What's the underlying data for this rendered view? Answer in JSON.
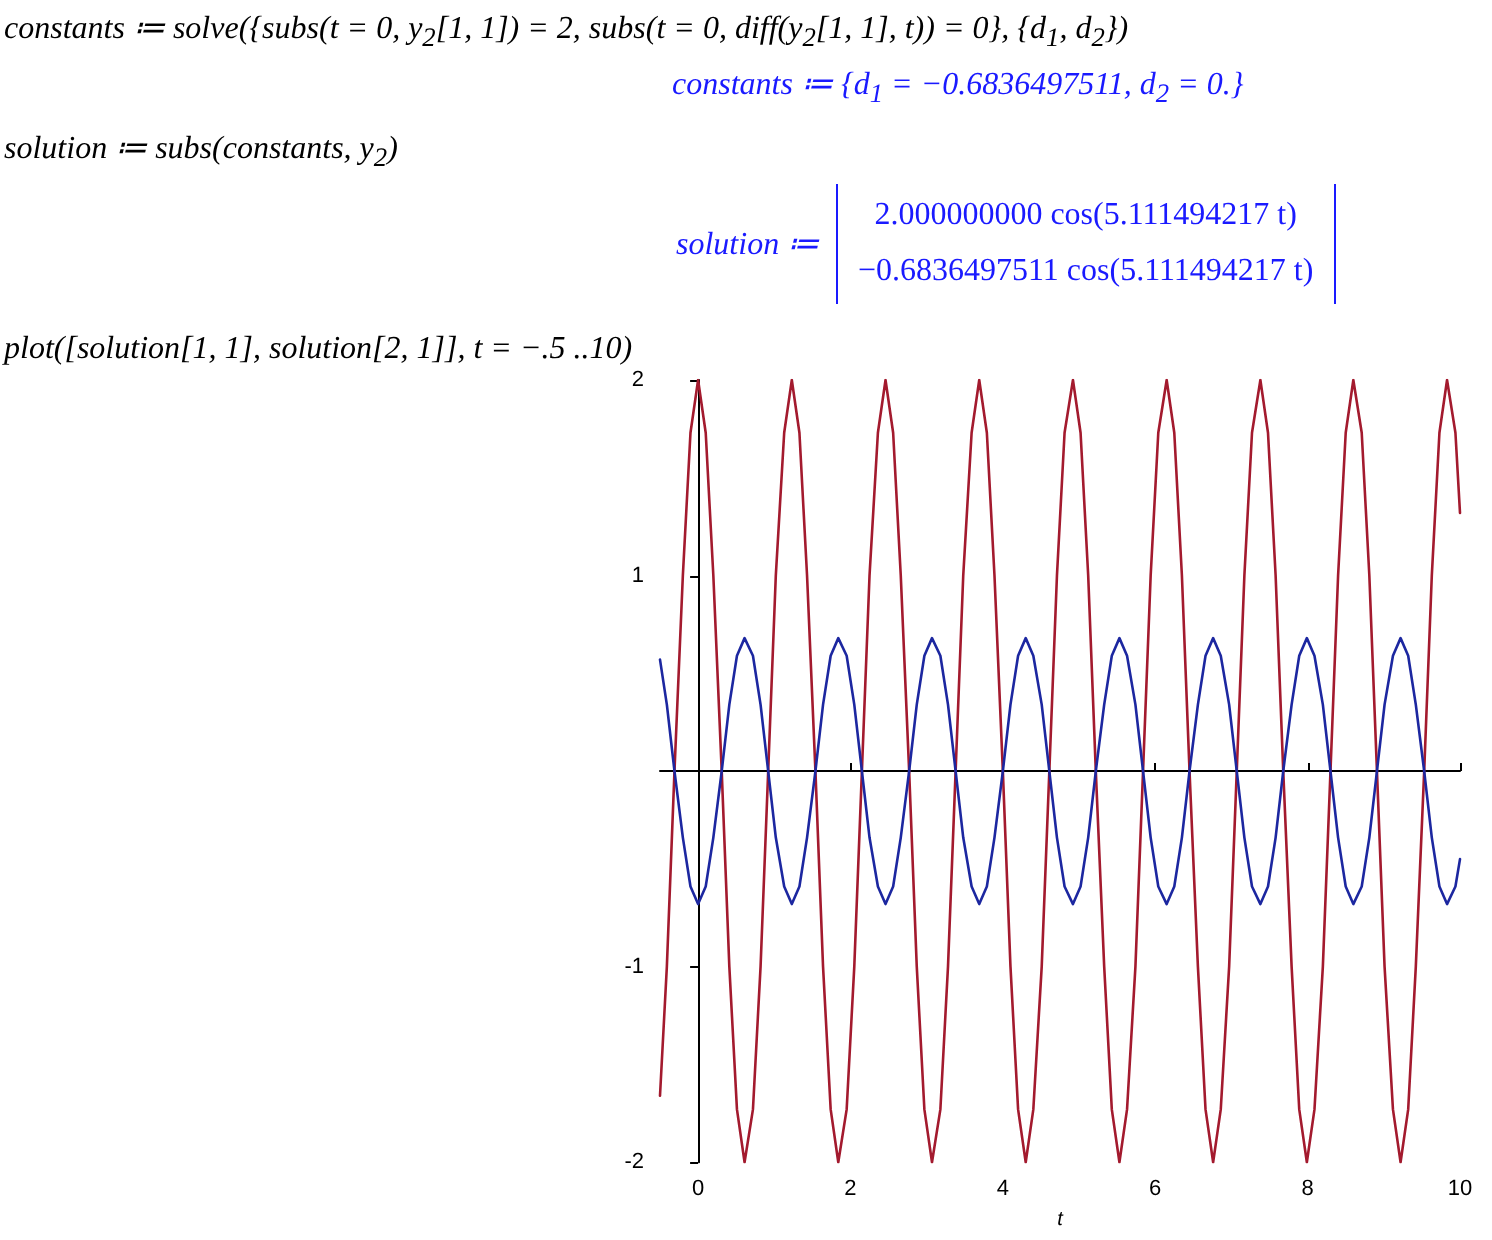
{
  "chart_data": {
    "type": "line",
    "annotations": [
      "constants ≔ solve({subs(t = 0, y$_{2}$[1, 1]) = 2, subs(t = 0, diff(y$_{2}$[1, 1], t)) = 0}, {d$_{1}$, d$_{2}$})",
      "constants ≔ {d$_{1}$ = −0.6836497511, d$_{2}$ = 0.}",
      "solution ≔ subs(constants, y$_{2}$)",
      "solution ≔",
      "2.000000000 cos(5.111494217 t)",
      "−0.6836497511 cos(5.111494217 t)",
      "plot([solution[1, 1], solution[2, 1]], t = −.5 ..10)"
    ],
    "xlabel": "t",
    "x": [
      -0.5,
      -0.41,
      -0.31,
      -0.2,
      -0.1,
      0,
      0.1,
      0.2,
      0.31,
      0.41,
      0.51,
      0.61,
      0.72,
      0.82,
      0.92,
      1.02,
      1.13,
      1.23,
      1.33,
      1.43,
      1.54,
      1.64,
      1.74,
      1.84,
      1.95,
      2.05,
      2.15,
      2.25,
      2.36,
      2.46,
      2.56,
      2.66,
      2.77,
      2.87,
      2.97,
      3.07,
      3.18,
      3.28,
      3.38,
      3.48,
      3.59,
      3.69,
      3.79,
      3.89,
      4,
      4.1,
      4.2,
      4.3,
      4.4,
      4.51,
      4.61,
      4.71,
      4.81,
      4.92,
      5.02,
      5.12,
      5.22,
      5.33,
      5.43,
      5.53,
      5.63,
      5.74,
      5.84,
      5.94,
      6.04,
      6.15,
      6.25,
      6.35,
      6.45,
      6.56,
      6.66,
      6.76,
      6.86,
      6.97,
      7.07,
      7.17,
      7.27,
      7.38,
      7.48,
      7.58,
      7.68,
      7.79,
      7.89,
      7.99,
      8.09,
      8.2,
      8.3,
      8.4,
      8.5,
      8.6,
      8.71,
      8.81,
      8.91,
      9.01,
      9.12,
      9.22,
      9.32,
      9.42,
      9.53,
      9.63,
      9.73,
      9.83,
      9.94,
      10
    ],
    "series": [
      {
        "color": "#a31a2e",
        "values": [
          -1.66,
          -1,
          0,
          1,
          1.73,
          2,
          1.73,
          1,
          0,
          -1,
          -1.73,
          -2,
          -1.73,
          -1,
          0,
          1,
          1.73,
          2,
          1.73,
          1,
          0,
          -1,
          -1.73,
          -2,
          -1.73,
          -1,
          0,
          1,
          1.73,
          2,
          1.73,
          1,
          0,
          -1,
          -1.73,
          -2,
          -1.73,
          -1,
          0,
          1,
          1.73,
          2,
          1.73,
          1,
          0,
          -1,
          -1.73,
          -2,
          -1.73,
          -1,
          0,
          1,
          1.73,
          2,
          1.73,
          1,
          0,
          -1,
          -1.73,
          -2,
          -1.73,
          -1,
          0,
          1,
          1.73,
          2,
          1.73,
          1,
          0,
          -1,
          -1.73,
          -2,
          -1.73,
          -1,
          0,
          1,
          1.73,
          2,
          1.73,
          1,
          0,
          -1,
          -1.73,
          -2,
          -1.73,
          -1,
          0,
          1,
          1.73,
          2,
          1.73,
          1,
          0,
          -1,
          -1.73,
          -2,
          -1.73,
          -1,
          0,
          1,
          1.73,
          2,
          1.73,
          1.32
        ]
      },
      {
        "color": "#1c27a0",
        "values": [
          0.57,
          0.34,
          0,
          -0.34,
          -0.59,
          -0.68,
          -0.59,
          -0.34,
          0,
          0.34,
          0.59,
          0.68,
          0.59,
          0.34,
          0,
          -0.34,
          -0.59,
          -0.68,
          -0.59,
          -0.34,
          0,
          0.34,
          0.59,
          0.68,
          0.59,
          0.34,
          0,
          -0.34,
          -0.59,
          -0.68,
          -0.59,
          -0.34,
          0,
          0.34,
          0.59,
          0.68,
          0.59,
          0.34,
          0,
          -0.34,
          -0.59,
          -0.68,
          -0.59,
          -0.34,
          0,
          0.34,
          0.59,
          0.68,
          0.59,
          0.34,
          0,
          -0.34,
          -0.59,
          -0.68,
          -0.59,
          -0.34,
          0,
          0.34,
          0.59,
          0.68,
          0.59,
          0.34,
          0,
          -0.34,
          -0.59,
          -0.68,
          -0.59,
          -0.34,
          0,
          0.34,
          0.59,
          0.68,
          0.59,
          0.34,
          0,
          -0.34,
          -0.59,
          -0.68,
          -0.59,
          -0.34,
          0,
          0.34,
          0.59,
          0.68,
          0.59,
          0.34,
          0,
          -0.34,
          -0.59,
          -0.68,
          -0.59,
          -0.34,
          0,
          0.34,
          0.59,
          0.68,
          0.59,
          0.34,
          0,
          -0.34,
          -0.59,
          -0.68,
          -0.59,
          -0.45
        ]
      }
    ],
    "xlim": [
      -0.5,
      10
    ],
    "xticks": [
      0,
      2,
      4,
      6,
      8,
      10
    ],
    "ylim": [
      -2,
      2
    ],
    "yticks": [
      -2,
      -1,
      {
        "value": 0,
        "label": null
      },
      1,
      2
    ],
    "marker": "none",
    "line_style": "solid"
  }
}
